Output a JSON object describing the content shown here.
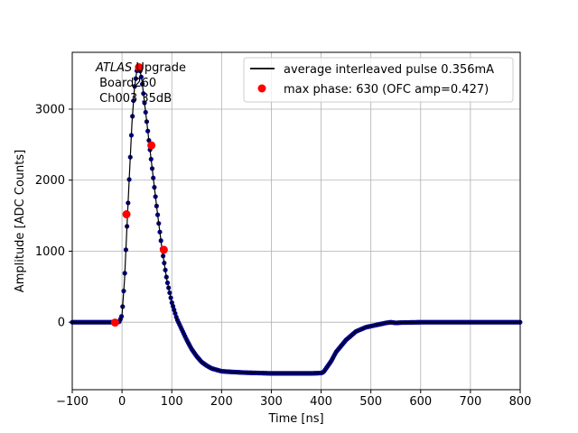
{
  "chart_data": {
    "type": "line",
    "xlabel": "Time [ns]",
    "ylabel": "Amplitude [ADC Counts]",
    "xlim": [
      -100,
      800
    ],
    "ylim": [
      -950,
      3800
    ],
    "xticks": [
      -100,
      0,
      100,
      200,
      300,
      400,
      500,
      600,
      700,
      800
    ],
    "yticks": [
      0,
      1000,
      2000,
      3000
    ],
    "grid": true,
    "legend_position": "top-right",
    "annotation": {
      "line1_italic": "ATLAS",
      "line1_rest": " Upgrade",
      "line2": " Board260",
      "line3": " Ch003 35dB"
    },
    "series": [
      {
        "name": "average interleaved pulse 0.356mA",
        "kind": "line",
        "color": "#000000",
        "marker_color": "#00008b",
        "x": [
          -100,
          -20,
          -10,
          -5,
          0,
          5,
          10,
          15,
          20,
          25,
          30,
          35,
          40,
          45,
          50,
          55,
          60,
          70,
          80,
          90,
          100,
          110,
          120,
          130,
          140,
          150,
          160,
          170,
          180,
          190,
          200,
          220,
          250,
          300,
          350,
          380,
          400,
          405,
          410,
          420,
          430,
          450,
          470,
          490,
          510,
          530,
          540,
          550,
          560,
          600,
          650,
          700,
          800
        ],
        "y": [
          0,
          0,
          0,
          10,
          100,
          600,
          1350,
          2100,
          2800,
          3300,
          3550,
          3590,
          3400,
          3100,
          2800,
          2500,
          2200,
          1600,
          1050,
          600,
          280,
          50,
          -100,
          -250,
          -380,
          -480,
          -560,
          -610,
          -650,
          -670,
          -690,
          -700,
          -710,
          -720,
          -720,
          -720,
          -715,
          -700,
          -650,
          -550,
          -420,
          -250,
          -130,
          -70,
          -40,
          -10,
          0,
          -10,
          -5,
          0,
          0,
          0,
          0
        ]
      },
      {
        "name": "max phase: 630 (OFC amp=0.427)",
        "kind": "scatter",
        "color": "#ff0000",
        "x": [
          -14,
          9,
          34,
          59,
          84
        ],
        "y": [
          -5,
          1520,
          3590,
          2490,
          1020
        ]
      }
    ]
  }
}
